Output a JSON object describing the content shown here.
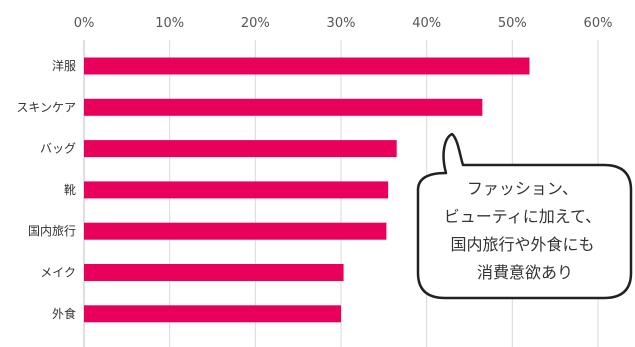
{
  "chart_data": {
    "type": "bar",
    "orientation": "horizontal",
    "categories": [
      "洋服",
      "スキンケア",
      "バッグ",
      "靴",
      "国内旅行",
      "メイク",
      "外食"
    ],
    "values": [
      52,
      46.5,
      36.5,
      35.5,
      35.3,
      30.3,
      30.0
    ],
    "xlim": [
      0,
      60
    ],
    "xticks": [
      "0%",
      "10%",
      "20%",
      "30%",
      "40%",
      "50%",
      "60%"
    ],
    "xtick_values": [
      0,
      10,
      20,
      30,
      40,
      50,
      60
    ],
    "grid": true,
    "bar_color": "#e8005a",
    "grid_color": "#d9d9d9",
    "title": "",
    "xlabel": "",
    "ylabel": "",
    "annotation": {
      "lines": [
        "ファッション、",
        "ビューティに加えて、",
        "国内旅行や外食にも",
        "消費意欲あり"
      ]
    }
  }
}
